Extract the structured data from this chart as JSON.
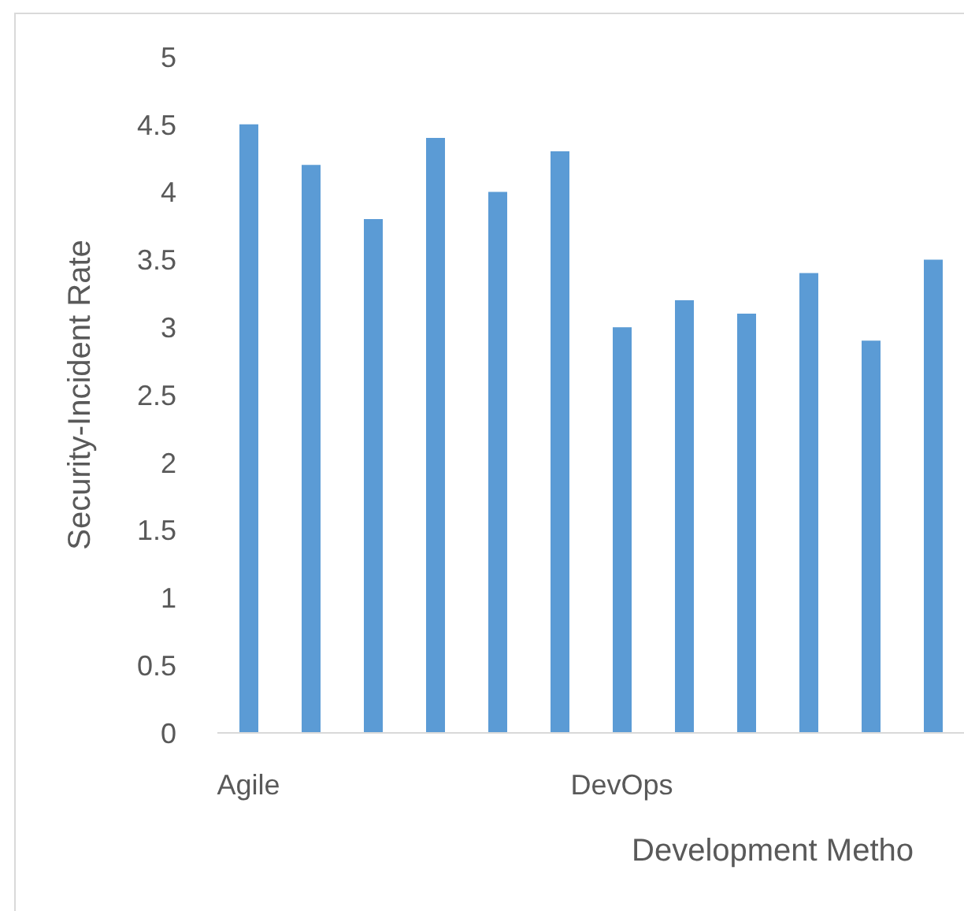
{
  "chart_data": {
    "type": "bar",
    "xlabel": "Development Metho",
    "ylabel": "Security-Incident Rate",
    "categories": [
      "Agile",
      null,
      null,
      null,
      null,
      null,
      "DevOps",
      null,
      null,
      null,
      null,
      null
    ],
    "values": [
      4.5,
      4.2,
      3.8,
      4.4,
      4.0,
      4.3,
      3.0,
      3.2,
      3.1,
      3.4,
      2.9,
      3.5
    ],
    "color": "#5b9bd5",
    "ylim": [
      0,
      5
    ],
    "yticks": [
      0,
      0.5,
      1,
      1.5,
      2,
      2.5,
      3,
      3.5,
      4,
      4.5,
      5
    ],
    "grid": false,
    "legend": false
  }
}
